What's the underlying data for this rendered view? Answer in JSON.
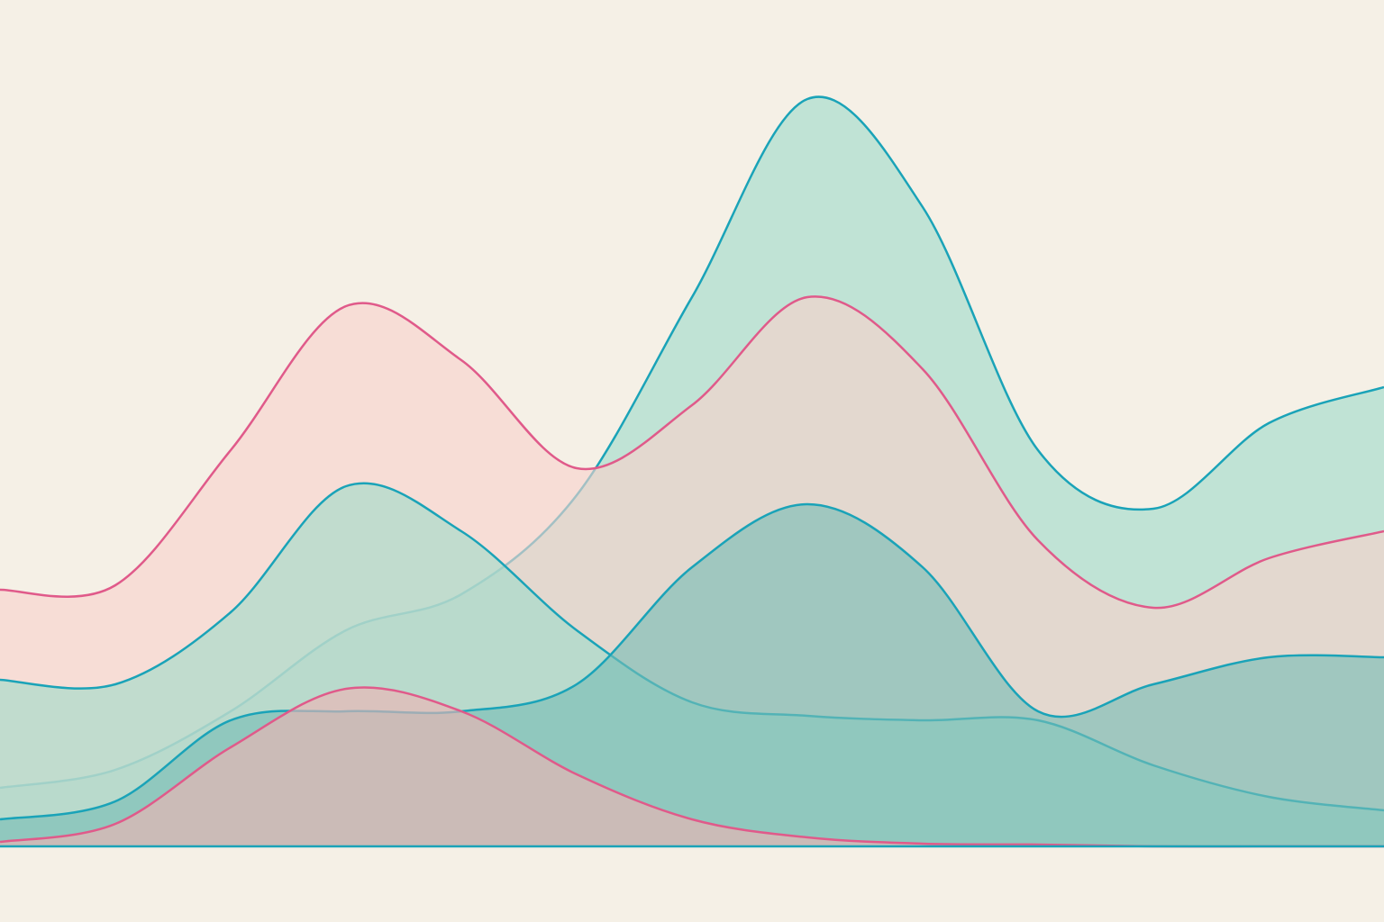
{
  "chart_data": {
    "type": "area",
    "smooth": true,
    "ylim": [
      0,
      94
    ],
    "series": [
      {
        "color": "#1aa3b8",
        "fill": "#9fdcca",
        "values": [
          6.5,
          8.5,
          15,
          24,
          28,
          39,
          61,
          83,
          71,
          44,
          37.5,
          47,
          51
        ]
      },
      {
        "color": "#e05a8a",
        "fill": "#f8d2cc",
        "values": [
          28.5,
          29,
          44,
          60,
          54,
          42,
          49,
          61,
          53,
          34,
          26.5,
          32,
          35
        ]
      },
      {
        "color": "#1aa3b8",
        "fill": "#9fdcca",
        "values": [
          18.5,
          18,
          26,
          40,
          35,
          24,
          16,
          14.5,
          14,
          14,
          9,
          5.5,
          4
        ]
      },
      {
        "color": "#1aa3b8",
        "fill": "#78bdb4",
        "values": [
          3,
          5,
          14,
          15,
          15,
          18,
          31,
          38,
          31,
          15,
          18,
          21,
          21
        ]
      },
      {
        "color": "#e05a8a",
        "fill": "#efb3b3",
        "values": [
          0.5,
          2.5,
          11,
          17.5,
          15,
          8,
          3,
          1,
          0.3,
          0.2,
          0,
          0,
          0
        ]
      }
    ]
  }
}
